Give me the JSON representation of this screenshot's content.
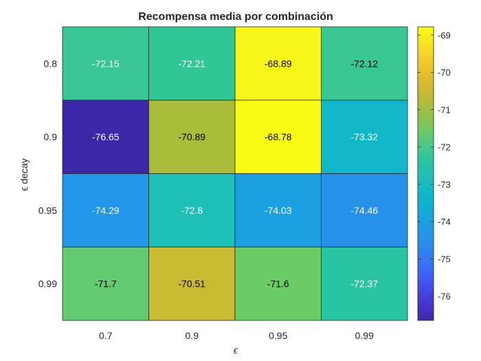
{
  "chart_data": {
    "type": "heatmap",
    "title": "Recompensa media por combinación",
    "xlabel": "ϵ",
    "ylabel": "ϵ decay",
    "x_categories": [
      "0.7",
      "0.9",
      "0.95",
      "0.99"
    ],
    "y_categories": [
      "0.8",
      "0.9",
      "0.95",
      "0.99"
    ],
    "values": [
      [
        -72.15,
        -72.21,
        -68.89,
        -72.12
      ],
      [
        -76.65,
        -70.89,
        -68.78,
        -73.32
      ],
      [
        -74.29,
        -72.8,
        -74.03,
        -74.46
      ],
      [
        -71.7,
        -70.51,
        -71.6,
        -72.37
      ]
    ],
    "value_labels": [
      [
        "-72.15",
        "-72.21",
        "-68.89",
        "-72.12"
      ],
      [
        "-76.65",
        "-70.89",
        "-68.78",
        "-73.32"
      ],
      [
        "-74.29",
        "-72.8",
        "-74.03",
        "-74.46"
      ],
      [
        "-71.7",
        "-70.51",
        "-71.6",
        "-72.37"
      ]
    ],
    "colorbar": {
      "range": [
        -76.65,
        -68.78
      ],
      "ticks": [
        -69,
        -70,
        -71,
        -72,
        -73,
        -74,
        -75,
        -76
      ],
      "tick_labels": [
        "-69",
        "-70",
        "-71",
        "-72",
        "-73",
        "-74",
        "-75",
        "-76"
      ],
      "colormap": "parula"
    },
    "grid": true
  }
}
